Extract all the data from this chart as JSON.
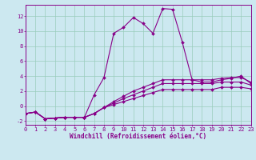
{
  "title": "",
  "xlabel": "Windchill (Refroidissement éolien,°C)",
  "bg_color": "#cce8f0",
  "grid_color": "#99ccbb",
  "line_color": "#880088",
  "series": [
    {
      "x": [
        0,
        1,
        2,
        3,
        4,
        5,
        6,
        7,
        8,
        9,
        10,
        11,
        12,
        13,
        14,
        15,
        16,
        17,
        18,
        19,
        20,
        21,
        22,
        23
      ],
      "y": [
        -1.0,
        -0.8,
        -1.7,
        -1.6,
        -1.5,
        -1.5,
        -1.5,
        1.5,
        3.8,
        9.7,
        10.5,
        11.8,
        11.0,
        9.7,
        13.0,
        12.9,
        8.5,
        3.5,
        3.2,
        3.2,
        3.5,
        3.7,
        4.0,
        3.0
      ]
    },
    {
      "x": [
        0,
        1,
        2,
        3,
        4,
        5,
        6,
        7,
        8,
        9,
        10,
        11,
        12,
        13,
        14,
        15,
        16,
        17,
        18,
        19,
        20,
        21,
        22,
        23
      ],
      "y": [
        -1.0,
        -0.8,
        -1.7,
        -1.6,
        -1.5,
        -1.5,
        -1.5,
        -1.0,
        -0.2,
        0.6,
        1.3,
        2.0,
        2.5,
        3.0,
        3.5,
        3.5,
        3.5,
        3.5,
        3.5,
        3.5,
        3.7,
        3.8,
        3.8,
        3.2
      ]
    },
    {
      "x": [
        0,
        1,
        2,
        3,
        4,
        5,
        6,
        7,
        8,
        9,
        10,
        11,
        12,
        13,
        14,
        15,
        16,
        17,
        18,
        19,
        20,
        21,
        22,
        23
      ],
      "y": [
        -1.0,
        -0.8,
        -1.7,
        -1.6,
        -1.5,
        -1.5,
        -1.5,
        -1.0,
        -0.2,
        0.4,
        1.0,
        1.5,
        2.0,
        2.5,
        3.0,
        3.0,
        3.0,
        3.0,
        3.0,
        3.0,
        3.2,
        3.2,
        3.2,
        2.8
      ]
    },
    {
      "x": [
        0,
        1,
        2,
        3,
        4,
        5,
        6,
        7,
        8,
        9,
        10,
        11,
        12,
        13,
        14,
        15,
        16,
        17,
        18,
        19,
        20,
        21,
        22,
        23
      ],
      "y": [
        -1.0,
        -0.8,
        -1.7,
        -1.6,
        -1.5,
        -1.5,
        -1.5,
        -1.0,
        -0.2,
        0.2,
        0.6,
        1.0,
        1.4,
        1.8,
        2.2,
        2.2,
        2.2,
        2.2,
        2.2,
        2.2,
        2.5,
        2.5,
        2.5,
        2.3
      ]
    }
  ],
  "xlim": [
    0,
    23
  ],
  "ylim": [
    -2.5,
    13.5
  ],
  "yticks": [
    -2,
    0,
    2,
    4,
    6,
    8,
    10,
    12
  ],
  "xticks": [
    0,
    1,
    2,
    3,
    4,
    5,
    6,
    7,
    8,
    9,
    10,
    11,
    12,
    13,
    14,
    15,
    16,
    17,
    18,
    19,
    20,
    21,
    22,
    23
  ],
  "marker_size": 2.0,
  "line_width": 0.8,
  "tick_fontsize": 5.0,
  "xlabel_fontsize": 5.5
}
